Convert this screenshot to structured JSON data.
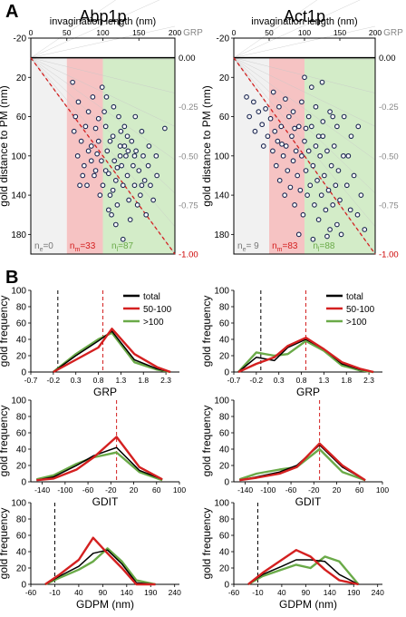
{
  "panel_labels": [
    "A",
    "B"
  ],
  "colors": {
    "total": "#000000",
    "mid": "#d42020",
    "late": "#6aaa48",
    "early_zone": "#f1f1f1",
    "mid_zone": "#f6c3c3",
    "late_zone": "#d3ecc8",
    "dot_stroke": "#1b2650",
    "dot_fill": "#ffffff",
    "grp_tick": "#888888",
    "grp_end": "#cc0000"
  },
  "chart_data": [
    {
      "type": "scatter",
      "title": "Abp1p",
      "xlabel": "invagination length (nm)",
      "ylabel": "gold distance to PM (nm)",
      "xlim": [
        0,
        200
      ],
      "ylim": [
        -20,
        200
      ],
      "xticks": [
        "0",
        "50",
        "100",
        "150",
        "200"
      ],
      "yticks": [
        "-20",
        "20",
        "60",
        "100",
        "140",
        "180"
      ],
      "right_axis_label": "GRP",
      "right_ticks": [
        "0.00",
        "-0.25",
        "-0.50",
        "-0.75",
        "-1.00"
      ],
      "zones": [
        [
          0,
          50
        ],
        [
          50,
          100
        ],
        [
          100,
          200
        ]
      ],
      "counts": [
        {
          "prefix": "n",
          "sub": "e",
          "suffix": "=0"
        },
        {
          "prefix": "n",
          "sub": "m",
          "suffix": "=33"
        },
        {
          "prefix": "n",
          "sub": "l",
          "suffix": "=87"
        }
      ],
      "points": [
        [
          58,
          25
        ],
        [
          62,
          60
        ],
        [
          66,
          45
        ],
        [
          70,
          85
        ],
        [
          74,
          110
        ],
        [
          78,
          130
        ],
        [
          80,
          55
        ],
        [
          84,
          90
        ],
        [
          86,
          40
        ],
        [
          88,
          120
        ],
        [
          90,
          72
        ],
        [
          92,
          98
        ],
        [
          94,
          62
        ],
        [
          96,
          140
        ],
        [
          98,
          105
        ],
        [
          99,
          30
        ],
        [
          102,
          55
        ],
        [
          104,
          70
        ],
        [
          106,
          95
        ],
        [
          108,
          118
        ],
        [
          110,
          140
        ],
        [
          112,
          160
        ],
        [
          114,
          80
        ],
        [
          116,
          105
        ],
        [
          118,
          125
        ],
        [
          120,
          150
        ],
        [
          122,
          60
        ],
        [
          124,
          90
        ],
        [
          126,
          110
        ],
        [
          128,
          130
        ],
        [
          130,
          70
        ],
        [
          132,
          100
        ],
        [
          134,
          120
        ],
        [
          136,
          145
        ],
        [
          138,
          165
        ],
        [
          140,
          85
        ],
        [
          142,
          110
        ],
        [
          144,
          130
        ],
        [
          146,
          95
        ],
        [
          148,
          150
        ],
        [
          150,
          115
        ],
        [
          152,
          140
        ],
        [
          154,
          75
        ],
        [
          156,
          100
        ],
        [
          158,
          125
        ],
        [
          160,
          160
        ],
        [
          163,
          110
        ],
        [
          166,
          130
        ],
        [
          170,
          145
        ],
        [
          175,
          120
        ],
        [
          105,
          40
        ],
        [
          115,
          50
        ],
        [
          125,
          75
        ],
        [
          135,
          95
        ],
        [
          145,
          60
        ],
        [
          100,
          130
        ],
        [
          108,
          155
        ],
        [
          118,
          170
        ],
        [
          128,
          185
        ],
        [
          110,
          85
        ],
        [
          120,
          112
        ],
        [
          130,
          90
        ],
        [
          90,
          115
        ],
        [
          80,
          95
        ],
        [
          72,
          120
        ],
        [
          65,
          100
        ],
        [
          60,
          75
        ],
        [
          68,
          130
        ],
        [
          76,
          70
        ],
        [
          84,
          105
        ],
        [
          94,
          85
        ],
        [
          104,
          115
        ],
        [
          114,
          135
        ],
        [
          124,
          100
        ],
        [
          134,
          80
        ],
        [
          144,
          100
        ],
        [
          154,
          130
        ],
        [
          164,
          90
        ],
        [
          174,
          100
        ],
        [
          186,
          72
        ]
      ]
    },
    {
      "type": "scatter",
      "title": "Act1p",
      "xlabel": "invagination length (nm)",
      "ylabel": "gold distance to PM (nm)",
      "xlim": [
        0,
        200
      ],
      "ylim": [
        -20,
        200
      ],
      "xticks": [
        "0",
        "50",
        "100",
        "150",
        "200"
      ],
      "yticks": [
        "-20",
        "20",
        "60",
        "100",
        "140",
        "180"
      ],
      "right_axis_label": "GRP",
      "right_ticks": [
        "0.00",
        "-0.25",
        "-0.50",
        "-0.75",
        "-1.00"
      ],
      "zones": [
        [
          0,
          50
        ],
        [
          50,
          100
        ],
        [
          100,
          200
        ]
      ],
      "counts": [
        {
          "prefix": "n",
          "sub": "e",
          "suffix": "= 9"
        },
        {
          "prefix": "n",
          "sub": "m",
          "suffix": "=83"
        },
        {
          "prefix": "n",
          "sub": "l",
          "suffix": "=88"
        }
      ],
      "points": [
        [
          18,
          40
        ],
        [
          22,
          60
        ],
        [
          28,
          45
        ],
        [
          30,
          75
        ],
        [
          35,
          55
        ],
        [
          40,
          68
        ],
        [
          42,
          90
        ],
        [
          45,
          52
        ],
        [
          48,
          80
        ],
        [
          52,
          62
        ],
        [
          55,
          95
        ],
        [
          58,
          75
        ],
        [
          60,
          110
        ],
        [
          62,
          85
        ],
        [
          65,
          125
        ],
        [
          67,
          70
        ],
        [
          70,
          100
        ],
        [
          72,
          140
        ],
        [
          74,
          90
        ],
        [
          76,
          115
        ],
        [
          78,
          60
        ],
        [
          80,
          132
        ],
        [
          82,
          80
        ],
        [
          84,
          105
        ],
        [
          86,
          150
        ],
        [
          88,
          95
        ],
        [
          90,
          120
        ],
        [
          92,
          70
        ],
        [
          94,
          135
        ],
        [
          96,
          100
        ],
        [
          98,
          160
        ],
        [
          100,
          85
        ],
        [
          102,
          115
        ],
        [
          104,
          140
        ],
        [
          106,
          95
        ],
        [
          108,
          130
        ],
        [
          110,
          70
        ],
        [
          112,
          110
        ],
        [
          114,
          150
        ],
        [
          116,
          90
        ],
        [
          118,
          125
        ],
        [
          120,
          165
        ],
        [
          122,
          100
        ],
        [
          124,
          140
        ],
        [
          126,
          80
        ],
        [
          128,
          120
        ],
        [
          130,
          155
        ],
        [
          132,
          95
        ],
        [
          134,
          135
        ],
        [
          136,
          175
        ],
        [
          138,
          110
        ],
        [
          140,
          150
        ],
        [
          142,
          90
        ],
        [
          144,
          130
        ],
        [
          146,
          170
        ],
        [
          148,
          115
        ],
        [
          150,
          145
        ],
        [
          155,
          100
        ],
        [
          160,
          130
        ],
        [
          165,
          155
        ],
        [
          170,
          120
        ],
        [
          175,
          160
        ],
        [
          180,
          140
        ],
        [
          185,
          175
        ],
        [
          56,
          35
        ],
        [
          64,
          50
        ],
        [
          73,
          42
        ],
        [
          84,
          55
        ],
        [
          96,
          45
        ],
        [
          106,
          60
        ],
        [
          116,
          50
        ],
        [
          126,
          65
        ],
        [
          136,
          55
        ],
        [
          146,
          70
        ],
        [
          156,
          60
        ],
        [
          166,
          80
        ],
        [
          176,
          70
        ],
        [
          68,
          88
        ],
        [
          86,
          72
        ],
        [
          102,
          72
        ],
        [
          120,
          80
        ],
        [
          140,
          60
        ],
        [
          162,
          100
        ],
        [
          92,
          180
        ],
        [
          112,
          185
        ],
        [
          132,
          182
        ],
        [
          152,
          180
        ],
        [
          100,
          20
        ],
        [
          110,
          30
        ],
        [
          125,
          25
        ]
      ]
    },
    {
      "type": "line",
      "xlabel": "GRP",
      "ylabel": "gold frequency",
      "xlim": [
        -0.7,
        2.6
      ],
      "ylim": [
        0,
        100
      ],
      "xticks": [
        -0.7,
        -0.2,
        0.3,
        0.8,
        1.3,
        1.8,
        2.3
      ],
      "yticks": [
        0,
        20,
        40,
        60,
        80,
        100
      ],
      "vlines": [
        {
          "x": -0.1,
          "color": "black"
        },
        {
          "x": 0.9,
          "color": "red"
        }
      ],
      "legend": "top-right",
      "x": [
        -0.2,
        0.3,
        0.8,
        1.1,
        1.6,
        2.1,
        2.4
      ],
      "series": [
        {
          "name": "total",
          "values": [
            0,
            20,
            38,
            50,
            15,
            4,
            0
          ]
        },
        {
          "name": "50-100",
          "values": [
            0,
            15,
            30,
            53,
            22,
            6,
            0
          ]
        },
        {
          "name": ">100",
          "values": [
            0,
            22,
            40,
            48,
            12,
            3,
            0
          ]
        }
      ]
    },
    {
      "type": "line",
      "xlabel": "GRP",
      "ylabel": "gold frequency",
      "xlim": [
        -0.7,
        2.6
      ],
      "ylim": [
        0,
        100
      ],
      "xticks": [
        -0.7,
        -0.2,
        0.3,
        0.8,
        1.3,
        1.8,
        2.3
      ],
      "yticks": [
        0,
        20,
        40,
        60,
        80,
        100
      ],
      "vlines": [
        {
          "x": -0.1,
          "color": "black"
        },
        {
          "x": 0.9,
          "color": "red"
        }
      ],
      "legend": "top-right",
      "x": [
        -0.6,
        -0.2,
        0.2,
        0.5,
        0.9,
        1.3,
        1.7,
        2.1,
        2.4
      ],
      "series": [
        {
          "name": "total",
          "values": [
            0,
            18,
            14,
            30,
            40,
            28,
            10,
            3,
            0
          ]
        },
        {
          "name": "50-100",
          "values": [
            0,
            10,
            18,
            32,
            42,
            28,
            12,
            4,
            0
          ]
        },
        {
          "name": ">100",
          "values": [
            0,
            24,
            20,
            22,
            38,
            26,
            8,
            2,
            0
          ]
        }
      ]
    },
    {
      "type": "line",
      "xlabel": "GDIT",
      "ylabel": "gold frequency",
      "xlim": [
        -160,
        100
      ],
      "ylim": [
        0,
        100
      ],
      "xticks": [
        -140,
        -100,
        -60,
        -20,
        20,
        60,
        100
      ],
      "yticks": [
        0,
        20,
        40,
        60,
        80,
        100
      ],
      "vlines": [
        {
          "x": -10,
          "color": "red"
        }
      ],
      "x": [
        -150,
        -120,
        -80,
        -50,
        -10,
        30,
        70
      ],
      "series": [
        {
          "name": "total",
          "values": [
            2,
            6,
            20,
            32,
            42,
            14,
            3
          ]
        },
        {
          "name": "50-100",
          "values": [
            2,
            4,
            15,
            30,
            55,
            18,
            3
          ]
        },
        {
          "name": ">100",
          "values": [
            3,
            8,
            22,
            30,
            36,
            12,
            2
          ]
        }
      ]
    },
    {
      "type": "line",
      "xlabel": "GDIT",
      "ylabel": "gold frequency",
      "xlim": [
        -160,
        100
      ],
      "ylim": [
        0,
        100
      ],
      "xticks": [
        -140,
        -100,
        -60,
        -20,
        20,
        60,
        100
      ],
      "yticks": [
        0,
        20,
        40,
        60,
        80,
        100
      ],
      "vlines": [
        {
          "x": -10,
          "color": "red"
        }
      ],
      "x": [
        -150,
        -120,
        -80,
        -50,
        -10,
        30,
        70
      ],
      "series": [
        {
          "name": "total",
          "values": [
            2,
            6,
            12,
            20,
            45,
            18,
            2
          ]
        },
        {
          "name": "50-100",
          "values": [
            2,
            5,
            10,
            18,
            47,
            20,
            2
          ]
        },
        {
          "name": ">100",
          "values": [
            3,
            10,
            15,
            18,
            40,
            12,
            2
          ]
        }
      ]
    },
    {
      "type": "line",
      "xlabel": "GDPM (nm)",
      "ylabel": "gold frequency",
      "xlim": [
        -60,
        250
      ],
      "ylim": [
        0,
        100
      ],
      "xticks": [
        -60,
        -10,
        40,
        90,
        140,
        190,
        240
      ],
      "yticks": [
        0,
        20,
        40,
        60,
        80,
        100
      ],
      "vlines": [
        {
          "x": -10,
          "color": "black"
        }
      ],
      "x": [
        -30,
        0,
        40,
        70,
        100,
        130,
        160,
        200
      ],
      "series": [
        {
          "name": "total",
          "values": [
            0,
            10,
            22,
            38,
            42,
            25,
            2,
            0
          ]
        },
        {
          "name": "50-100",
          "values": [
            0,
            12,
            30,
            57,
            38,
            20,
            0,
            0
          ]
        },
        {
          "name": ">100",
          "values": [
            0,
            8,
            18,
            28,
            44,
            28,
            5,
            0
          ]
        }
      ]
    },
    {
      "type": "line",
      "xlabel": "GDPM (nm)",
      "ylabel": "gold frequency",
      "xlim": [
        -60,
        250
      ],
      "ylim": [
        0,
        100
      ],
      "xticks": [
        -60,
        -10,
        40,
        90,
        140,
        190,
        240
      ],
      "yticks": [
        0,
        20,
        40,
        60,
        80,
        100
      ],
      "vlines": [
        {
          "x": -10,
          "color": "black"
        }
      ],
      "x": [
        -30,
        0,
        40,
        70,
        100,
        130,
        160,
        200
      ],
      "series": [
        {
          "name": "total",
          "values": [
            0,
            12,
            22,
            30,
            30,
            28,
            12,
            0
          ]
        },
        {
          "name": "50-100",
          "values": [
            0,
            14,
            30,
            42,
            34,
            18,
            5,
            0
          ]
        },
        {
          "name": ">100",
          "values": [
            0,
            10,
            18,
            24,
            20,
            34,
            28,
            0
          ]
        }
      ]
    }
  ]
}
